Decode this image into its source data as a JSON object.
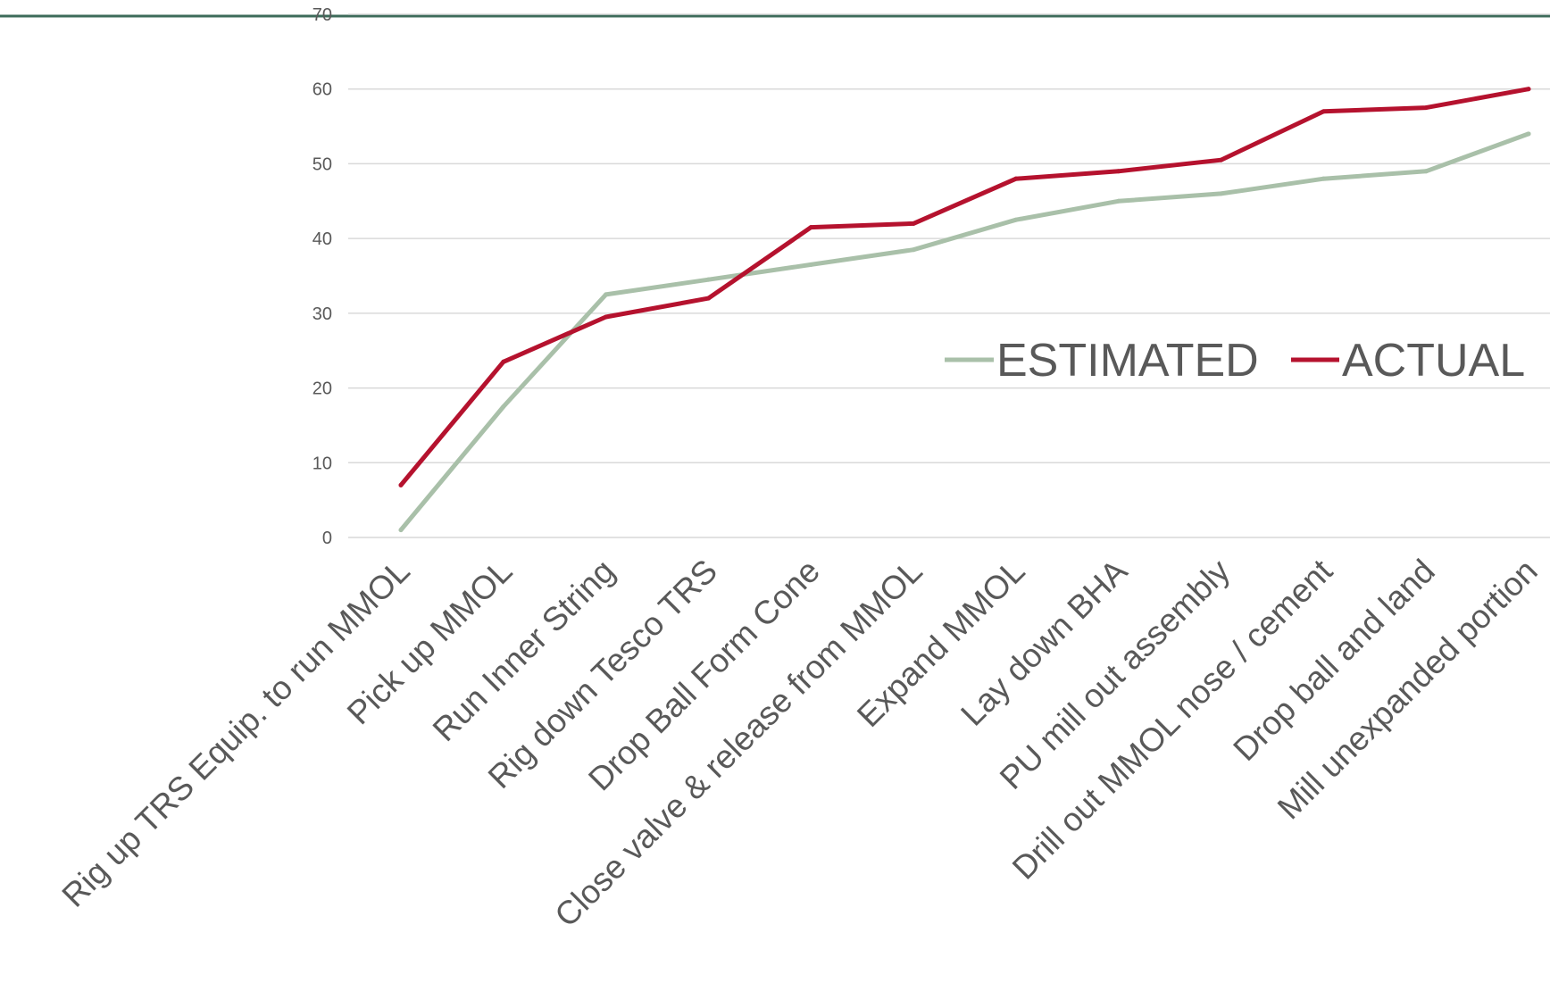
{
  "colors": {
    "top_rule": "#3d6b5a",
    "gridline": "#d9d9d9",
    "text": "#595959"
  },
  "chart_data": {
    "type": "line",
    "title": "",
    "xlabel": "",
    "ylabel": "",
    "ylim": [
      0,
      70
    ],
    "y_ticks": [
      "0",
      "10",
      "20",
      "30",
      "40",
      "50",
      "60",
      "70"
    ],
    "grid": true,
    "legend_position": "right",
    "categories": [
      "Rig up TRS Equip. to run MMOL",
      "Pick up MMOL",
      "Run Inner String",
      "Rig down Tesco TRS",
      "Drop Ball Form Cone",
      "Close valve & release from MMOL",
      "Expand MMOL",
      "Lay down BHA",
      "PU mill out assembly",
      "Drill out MMOL nose / cement",
      "Drop ball and land",
      "Mill unexpanded portion"
    ],
    "series": [
      {
        "name": "ESTIMATED",
        "color": "#a9c0a9",
        "values": [
          1,
          17.5,
          32.5,
          34.5,
          36.5,
          38.5,
          42.5,
          45,
          46,
          48,
          49,
          54
        ]
      },
      {
        "name": "ACTUAL",
        "color": "#b5122e",
        "values": [
          7,
          23.5,
          29.5,
          32,
          41.5,
          42,
          48,
          49,
          50.5,
          57,
          57.5,
          60
        ]
      }
    ]
  }
}
